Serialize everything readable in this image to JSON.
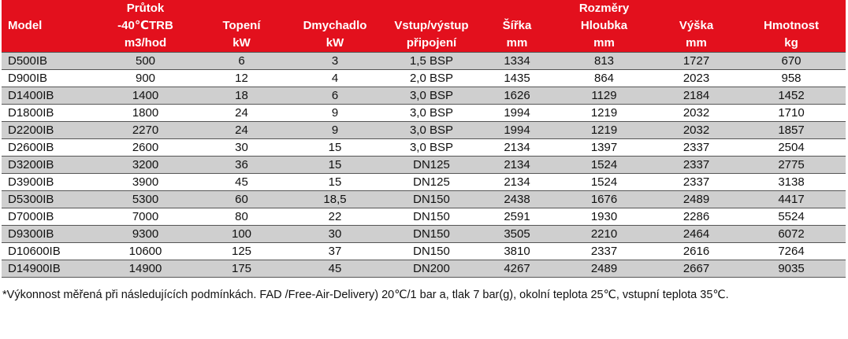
{
  "header": {
    "row1": [
      "",
      "Průtok",
      "",
      "",
      "",
      "",
      "Rozměry",
      "",
      ""
    ],
    "row2": [
      "Model",
      "-40℃TRB",
      "Topení",
      "Dmychadlo",
      "Vstup/výstup",
      "Šířka",
      "Hloubka",
      "Výška",
      "Hmotnost"
    ],
    "row3": [
      "",
      "m3/hod",
      "kW",
      "kW",
      "připojení",
      "mm",
      "mm",
      "mm",
      "kg"
    ]
  },
  "rows": [
    [
      "D500IB",
      "500",
      "6",
      "3",
      "1,5 BSP",
      "1334",
      "813",
      "1727",
      "670"
    ],
    [
      "D900IB",
      "900",
      "12",
      "4",
      "2,0 BSP",
      "1435",
      "864",
      "2023",
      "958"
    ],
    [
      "D1400IB",
      "1400",
      "18",
      "6",
      "3,0 BSP",
      "1626",
      "1129",
      "2184",
      "1452"
    ],
    [
      "D1800IB",
      "1800",
      "24",
      "9",
      "3,0 BSP",
      "1994",
      "1219",
      "2032",
      "1710"
    ],
    [
      "D2200IB",
      "2270",
      "24",
      "9",
      "3,0 BSP",
      "1994",
      "1219",
      "2032",
      "1857"
    ],
    [
      "D2600IB",
      "2600",
      "30",
      "15",
      "3,0 BSP",
      "2134",
      "1397",
      "2337",
      "2504"
    ],
    [
      "D3200IB",
      "3200",
      "36",
      "15",
      "DN125",
      "2134",
      "1524",
      "2337",
      "2775"
    ],
    [
      "D3900IB",
      "3900",
      "45",
      "15",
      "DN125",
      "2134",
      "1524",
      "2337",
      "3138"
    ],
    [
      "D5300IB",
      "5300",
      "60",
      "18,5",
      "DN150",
      "2438",
      "1676",
      "2489",
      "4417"
    ],
    [
      "D7000IB",
      "7000",
      "80",
      "22",
      "DN150",
      "2591",
      "1930",
      "2286",
      "5524"
    ],
    [
      "D9300IB",
      "9300",
      "100",
      "30",
      "DN150",
      "3505",
      "2210",
      "2464",
      "6072"
    ],
    [
      "D10600IB",
      "10600",
      "125",
      "37",
      "DN150",
      "3810",
      "2337",
      "2616",
      "7264"
    ],
    [
      "D14900IB",
      "14900",
      "175",
      "45",
      "DN200",
      "4267",
      "2489",
      "2667",
      "9035"
    ]
  ],
  "footnote": "*Výkonnost měřená při následujících podmínkách. FAD /Free-Air-Delivery) 20℃/1 bar a, tlak 7 bar(g), okolní teplota 25℃, vstupní teplota 35℃.",
  "colors": {
    "header_bg": "#e3101d",
    "header_text": "#ffffff",
    "alt_row": "#cfcfcf"
  }
}
